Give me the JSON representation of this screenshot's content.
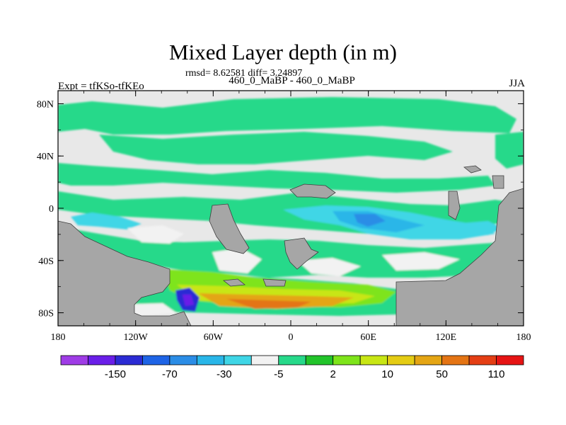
{
  "title": "Mixed Layer depth (in m)",
  "stats": "rmsd= 8.62581 diff= 3.24897",
  "subtitle": "460_0_MaBP - 460_0_MaBP",
  "expt": "Expt = tfKSo-tfKEo",
  "season": "JJA",
  "map": {
    "x_ticks": [
      "180",
      "120W",
      "60W",
      "0",
      "60E",
      "120E",
      "180"
    ],
    "y_ticks": [
      "80N",
      "40N",
      "0",
      "40S",
      "80S"
    ],
    "land_color": "#a6a6a6",
    "missing_color": "#e8e8e8"
  },
  "colorbar": {
    "colors": [
      "#9f3ce6",
      "#6a1ee8",
      "#2b2bd4",
      "#1e64e6",
      "#2b8de6",
      "#29b6e8",
      "#3fd6e6",
      "#f2f2f2",
      "#27d98a",
      "#22c42a",
      "#7ee41a",
      "#c8e614",
      "#e4cc14",
      "#e4a514",
      "#e47414",
      "#e43e14",
      "#e61414"
    ],
    "labels": [
      "-150",
      "-70",
      "-30",
      "-5",
      "2",
      "10",
      "50",
      "110"
    ]
  }
}
